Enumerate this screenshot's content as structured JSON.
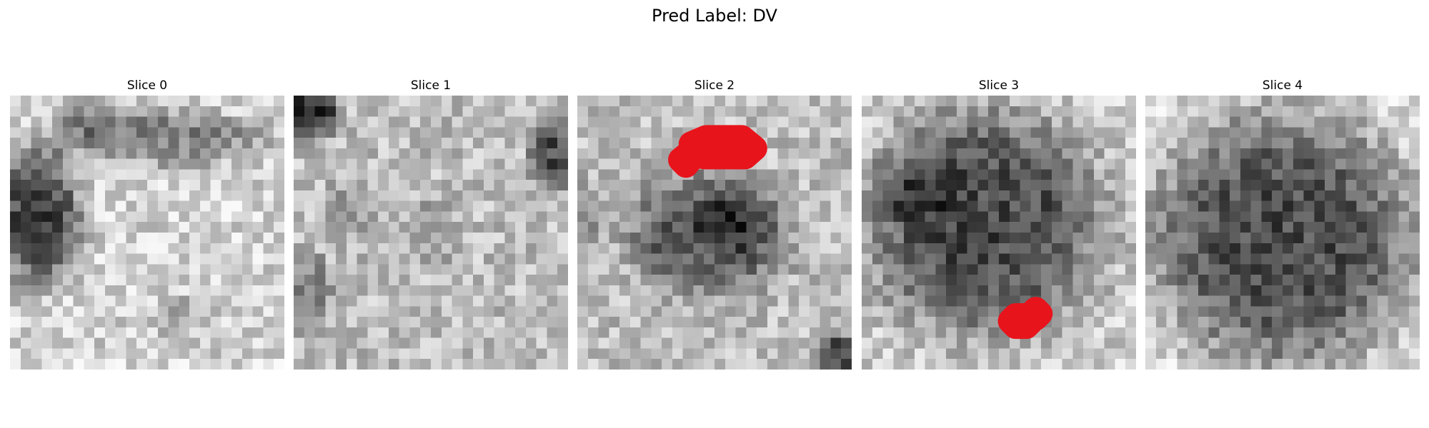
{
  "figure": {
    "title": "Pred Label: DV"
  },
  "panels": [
    {
      "title": "Slice 0",
      "grid_size": 26,
      "contours": []
    },
    {
      "title": "Slice 1",
      "grid_size": 26,
      "contours": []
    },
    {
      "title": "Slice 2",
      "grid_size": 26,
      "contours": [
        [
          [
            10.8,
            4.6
          ],
          [
            12.2,
            4.0
          ],
          [
            15.6,
            4.0
          ],
          [
            16.8,
            5.0
          ],
          [
            15.9,
            5.8
          ],
          [
            12.0,
            5.8
          ],
          [
            10.8,
            5.0
          ]
        ],
        [
          [
            9.8,
            6.1
          ],
          [
            10.3,
            5.7
          ],
          [
            10.7,
            6.1
          ],
          [
            10.3,
            6.6
          ]
        ]
      ]
    },
    {
      "title": "Slice 3",
      "grid_size": 26,
      "contours": [
        [
          [
            14.1,
            21.4
          ],
          [
            14.6,
            20.9
          ],
          [
            15.6,
            20.9
          ],
          [
            16.1,
            21.4
          ],
          [
            15.6,
            21.9
          ],
          [
            14.6,
            21.9
          ]
        ],
        [
          [
            16.1,
            20.7
          ],
          [
            16.5,
            20.3
          ],
          [
            16.9,
            20.7
          ],
          [
            16.5,
            21.1
          ]
        ]
      ]
    },
    {
      "title": "Slice 4",
      "grid_size": 26,
      "contours": []
    }
  ],
  "colors": {
    "contour": "#e8141c",
    "background": "#ffffff"
  }
}
